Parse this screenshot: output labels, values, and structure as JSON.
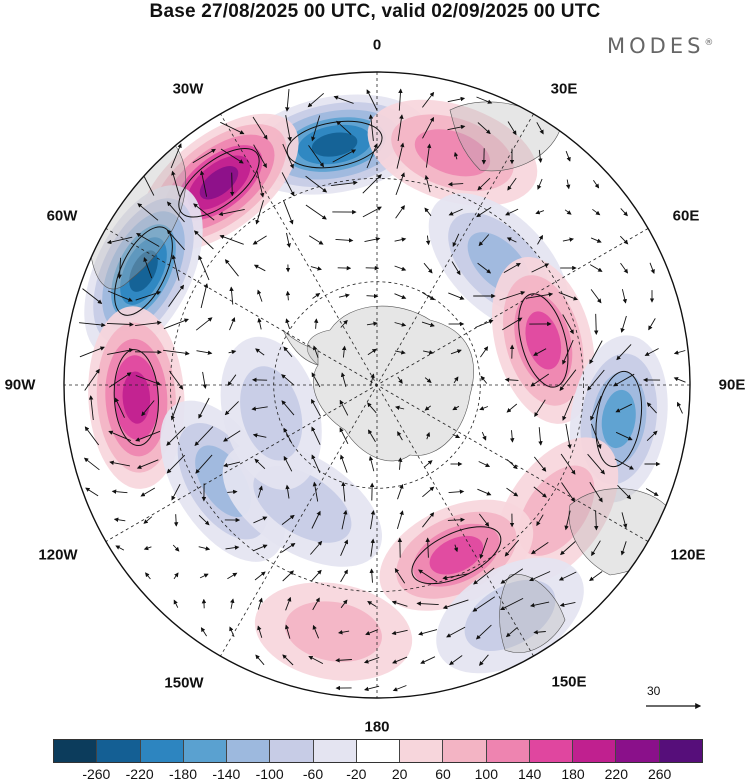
{
  "title": "Base 27/08/2025 00 UTC, valid 02/09/2025 00 UTC",
  "brand": {
    "name": "MODES",
    "mark": "®"
  },
  "map": {
    "projection": "polar stereographic (south pole)",
    "longitude_labels": [
      "0",
      "30E",
      "60E",
      "90E",
      "120E",
      "150E",
      "180",
      "150W",
      "120W",
      "90W",
      "60W",
      "30W"
    ]
  },
  "wind_reference": {
    "value": "30"
  },
  "colorbar": {
    "ticks": [
      "-260",
      "-220",
      "-180",
      "-140",
      "-100",
      "-60",
      "-20",
      "20",
      "60",
      "100",
      "140",
      "180",
      "220",
      "260"
    ],
    "colors": [
      "#0c3c5c",
      "#145f94",
      "#2d85c0",
      "#5aa1d0",
      "#9db9de",
      "#c7cce6",
      "#e4e4f1",
      "#ffffff",
      "#f7d6dc",
      "#f3b4c4",
      "#ee84b0",
      "#e0469f",
      "#c0208f",
      "#8a108a",
      "#560e7a"
    ]
  },
  "anomaly_centers": [
    {
      "lon": -10,
      "r": 0.78,
      "sign": -1,
      "value": -220
    },
    {
      "lon": -38,
      "r": 0.82,
      "sign": 1,
      "value": 240
    },
    {
      "lon": -64,
      "r": 0.83,
      "sign": -1,
      "value": -240
    },
    {
      "lon": -93,
      "r": 0.77,
      "sign": 1,
      "value": 180
    },
    {
      "lon": -122,
      "r": 0.58,
      "sign": -1,
      "value": -100
    },
    {
      "lon": -148,
      "r": 0.45,
      "sign": -1,
      "value": -60
    },
    {
      "lon": 18,
      "r": 0.78,
      "sign": 1,
      "value": 100
    },
    {
      "lon": 45,
      "r": 0.55,
      "sign": -1,
      "value": -100
    },
    {
      "lon": 75,
      "r": 0.55,
      "sign": 1,
      "value": 140
    },
    {
      "lon": 98,
      "r": 0.78,
      "sign": -1,
      "value": -140
    },
    {
      "lon": 125,
      "r": 0.7,
      "sign": 1,
      "value": 80
    },
    {
      "lon": 155,
      "r": 0.6,
      "sign": 1,
      "value": 160
    },
    {
      "lon": 150,
      "r": 0.85,
      "sign": -1,
      "value": -60
    },
    {
      "lon": -170,
      "r": 0.8,
      "sign": 1,
      "value": 60
    },
    {
      "lon": -105,
      "r": 0.35,
      "sign": -1,
      "value": -60
    }
  ]
}
